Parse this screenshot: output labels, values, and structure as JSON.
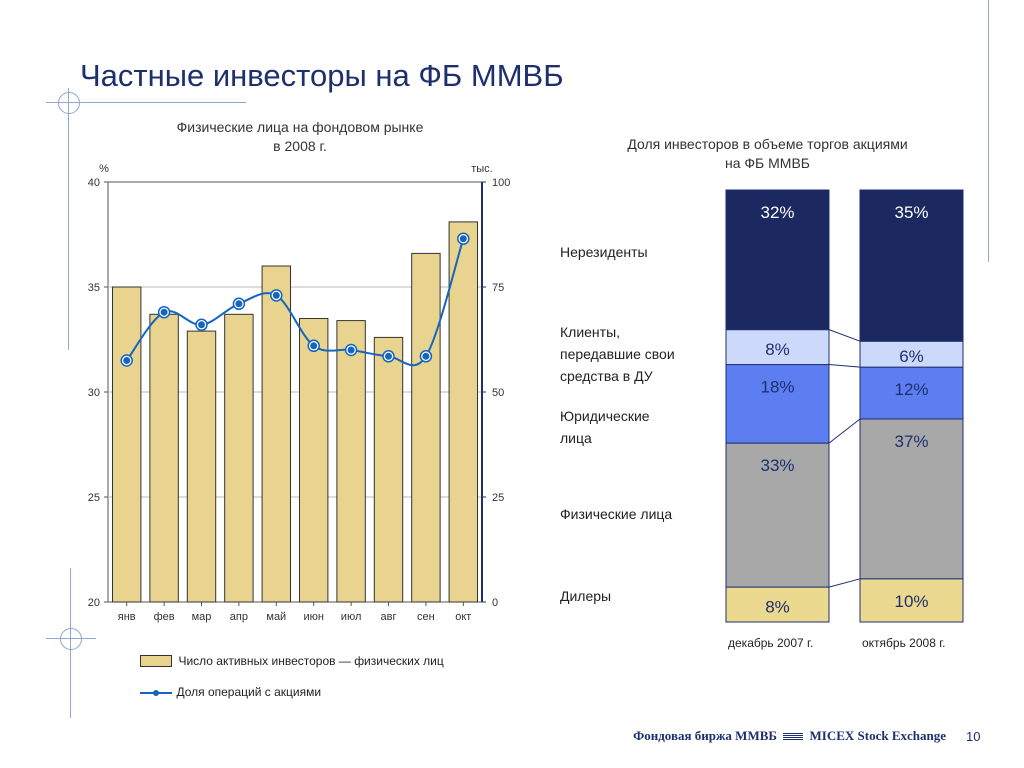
{
  "slide": {
    "title": "Частные инвесторы на ФБ ММВБ",
    "footer_brand": "Фондовая биржа ММВБ",
    "footer_brand_en": "MICEX Stock Exchange",
    "page_number": "10"
  },
  "colors": {
    "title": "#1d2f6f",
    "bar_fill": "#e8d48e",
    "bar_stroke": "#333333",
    "line": "#1565c0",
    "grid": "#b9b9b9",
    "nonresidents": "#1c2860",
    "clients": "#cdd9fb",
    "legal": "#5d7ef0",
    "individuals": "#a8a8a8",
    "dealers": "#ecd990"
  },
  "chart_data": [
    {
      "type": "bar",
      "title": "Физические лица на фондовом рынке в 2008 г.",
      "title_lines": [
        "Физические лица на фондовом рынке",
        "в 2008 г."
      ],
      "left_axis_unit": "%",
      "right_axis_unit": "тыс.",
      "categories": [
        "янв",
        "фев",
        "мар",
        "апр",
        "май",
        "июн",
        "июл",
        "авг",
        "сен",
        "окт"
      ],
      "left_ticks": [
        40,
        35,
        30,
        25,
        20
      ],
      "right_ticks": [
        100,
        75,
        50,
        25,
        0
      ],
      "ylim_left": [
        20,
        40
      ],
      "ylim_right": [
        0,
        100
      ],
      "grid": true,
      "series": [
        {
          "name": "Число активных инвесторов — физических лиц",
          "type": "bar",
          "axis": "right",
          "values": [
            75,
            68.5,
            64.5,
            68.5,
            80,
            67.5,
            67,
            63,
            83,
            90.5
          ]
        },
        {
          "name": "Доля операций с акциями",
          "type": "line",
          "axis": "left",
          "values": [
            31.5,
            33.8,
            33.2,
            34.2,
            34.6,
            32.2,
            32.0,
            31.7,
            31.7,
            37.3
          ]
        }
      ]
    },
    {
      "type": "bar",
      "stacked": true,
      "title": "Доля инвесторов в объеме торгов акциями на ФБ ММВБ",
      "title_lines": [
        "Доля инвесторов в объеме торгов акциями",
        "на ФБ ММВБ"
      ],
      "categories": [
        "декабрь 2007 г.",
        "октябрь 2008 г."
      ],
      "series": [
        {
          "name": "Дилеры",
          "values": [
            8,
            10
          ],
          "labels": [
            "8%",
            "10%"
          ]
        },
        {
          "name": "Физические лица",
          "values": [
            33,
            37
          ],
          "labels": [
            "33%",
            "37%"
          ]
        },
        {
          "name": "Юридические лица",
          "values": [
            18,
            12
          ],
          "labels": [
            "18%",
            "12%"
          ]
        },
        {
          "name": "Клиенты, передавшие свои средства в ДУ",
          "values": [
            8,
            6
          ],
          "labels": [
            "8%",
            "6%"
          ]
        },
        {
          "name": "Нерезиденты",
          "values": [
            32,
            35
          ],
          "labels": [
            "32%",
            "35%"
          ]
        }
      ],
      "legend_labels": {
        "nonresidents": "Нерезиденты",
        "clients": [
          "Клиенты,",
          "передавшие свои",
          "средства в ДУ"
        ],
        "legal": [
          "Юридические",
          "лица"
        ],
        "individuals": "Физические лица",
        "dealers": "Дилеры"
      }
    }
  ]
}
